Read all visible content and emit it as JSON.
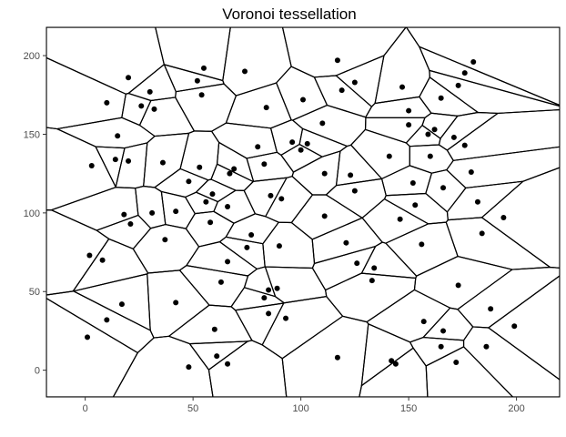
{
  "chart_data": {
    "type": "scatter",
    "title": "Voronoi tessellation",
    "xlabel": "",
    "ylabel": "",
    "xlim": [
      -18,
      220
    ],
    "ylim": [
      -17,
      218
    ],
    "x_ticks": [
      0,
      50,
      100,
      150,
      200
    ],
    "y_ticks": [
      0,
      50,
      100,
      150,
      200
    ],
    "x_tick_labels": [
      "0",
      "50",
      "100",
      "150",
      "200"
    ],
    "y_tick_labels": [
      "0",
      "50",
      "100",
      "150",
      "200"
    ],
    "grid": false,
    "tessellation": "voronoi",
    "point_color": "#000000",
    "edge_color": "#000000",
    "points": [
      {
        "x": 20,
        "y": 186
      },
      {
        "x": 10,
        "y": 170
      },
      {
        "x": 15,
        "y": 149
      },
      {
        "x": 14,
        "y": 134
      },
      {
        "x": 20,
        "y": 133
      },
      {
        "x": 3,
        "y": 130
      },
      {
        "x": 30,
        "y": 177
      },
      {
        "x": 26,
        "y": 168
      },
      {
        "x": 32,
        "y": 166
      },
      {
        "x": 55,
        "y": 192
      },
      {
        "x": 52,
        "y": 184
      },
      {
        "x": 54,
        "y": 175
      },
      {
        "x": 74,
        "y": 190
      },
      {
        "x": 36,
        "y": 132
      },
      {
        "x": 53,
        "y": 129
      },
      {
        "x": 48,
        "y": 120
      },
      {
        "x": 56,
        "y": 107
      },
      {
        "x": 59,
        "y": 112
      },
      {
        "x": 67,
        "y": 125
      },
      {
        "x": 69,
        "y": 128
      },
      {
        "x": 66,
        "y": 104
      },
      {
        "x": 18,
        "y": 99
      },
      {
        "x": 21,
        "y": 93
      },
      {
        "x": 31,
        "y": 100
      },
      {
        "x": 42,
        "y": 101
      },
      {
        "x": 58,
        "y": 94
      },
      {
        "x": 37,
        "y": 83
      },
      {
        "x": 2,
        "y": 73
      },
      {
        "x": 8,
        "y": 70
      },
      {
        "x": 77,
        "y": 86
      },
      {
        "x": 75,
        "y": 78
      },
      {
        "x": 66,
        "y": 69
      },
      {
        "x": 63,
        "y": 56
      },
      {
        "x": 84,
        "y": 167
      },
      {
        "x": 80,
        "y": 142
      },
      {
        "x": 83,
        "y": 131
      },
      {
        "x": 86,
        "y": 111
      },
      {
        "x": 91,
        "y": 109
      },
      {
        "x": 96,
        "y": 145
      },
      {
        "x": 100,
        "y": 140
      },
      {
        "x": 103,
        "y": 144
      },
      {
        "x": 101,
        "y": 172
      },
      {
        "x": 110,
        "y": 157
      },
      {
        "x": 117,
        "y": 197
      },
      {
        "x": 119,
        "y": 178
      },
      {
        "x": 125,
        "y": 183
      },
      {
        "x": 111,
        "y": 125
      },
      {
        "x": 123,
        "y": 124
      },
      {
        "x": 125,
        "y": 114
      },
      {
        "x": 111,
        "y": 98
      },
      {
        "x": 90,
        "y": 79
      },
      {
        "x": 121,
        "y": 81
      },
      {
        "x": 126,
        "y": 68
      },
      {
        "x": 133,
        "y": 57
      },
      {
        "x": 134,
        "y": 65
      },
      {
        "x": 147,
        "y": 180
      },
      {
        "x": 150,
        "y": 165
      },
      {
        "x": 150,
        "y": 156
      },
      {
        "x": 159,
        "y": 150
      },
      {
        "x": 162,
        "y": 153
      },
      {
        "x": 165,
        "y": 173
      },
      {
        "x": 173,
        "y": 181
      },
      {
        "x": 176,
        "y": 189
      },
      {
        "x": 180,
        "y": 196
      },
      {
        "x": 171,
        "y": 148
      },
      {
        "x": 176,
        "y": 143
      },
      {
        "x": 160,
        "y": 136
      },
      {
        "x": 141,
        "y": 136
      },
      {
        "x": 152,
        "y": 119
      },
      {
        "x": 166,
        "y": 116
      },
      {
        "x": 179,
        "y": 126
      },
      {
        "x": 182,
        "y": 107
      },
      {
        "x": 153,
        "y": 105
      },
      {
        "x": 146,
        "y": 96
      },
      {
        "x": 194,
        "y": 97
      },
      {
        "x": 184,
        "y": 87
      },
      {
        "x": 156,
        "y": 80
      },
      {
        "x": 173,
        "y": 54
      },
      {
        "x": 188,
        "y": 39
      },
      {
        "x": 199,
        "y": 28
      },
      {
        "x": 42,
        "y": 43
      },
      {
        "x": 17,
        "y": 42
      },
      {
        "x": 10,
        "y": 32
      },
      {
        "x": 1,
        "y": 21
      },
      {
        "x": 83,
        "y": 46
      },
      {
        "x": 85,
        "y": 51
      },
      {
        "x": 89,
        "y": 52
      },
      {
        "x": 85,
        "y": 36
      },
      {
        "x": 93,
        "y": 33
      },
      {
        "x": 60,
        "y": 26
      },
      {
        "x": 61,
        "y": 9
      },
      {
        "x": 48,
        "y": 2
      },
      {
        "x": 66,
        "y": 4
      },
      {
        "x": 117,
        "y": 8
      },
      {
        "x": 142,
        "y": 6
      },
      {
        "x": 144,
        "y": 4
      },
      {
        "x": 157,
        "y": 31
      },
      {
        "x": 166,
        "y": 25
      },
      {
        "x": 165,
        "y": 15
      },
      {
        "x": 172,
        "y": 5
      },
      {
        "x": 186,
        "y": 15
      }
    ]
  }
}
